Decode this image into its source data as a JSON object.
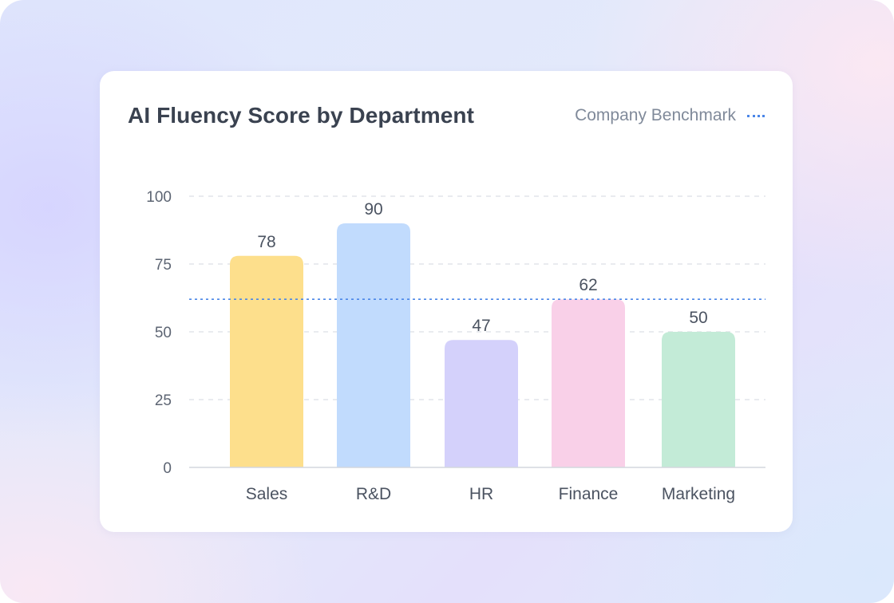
{
  "chart_data": {
    "type": "bar",
    "title": "AI Fluency Score by Department",
    "categories": [
      "Sales",
      "R&D",
      "HR",
      "Finance",
      "Marketing"
    ],
    "values": [
      78,
      90,
      47,
      62,
      50
    ],
    "data_labels": [
      "78",
      "90",
      "47",
      "62",
      "50"
    ],
    "bar_colors": [
      "#fddf8c",
      "#c1dbfd",
      "#d4d1fb",
      "#f9d0e8",
      "#c3ebd7"
    ],
    "ylim": [
      0,
      100
    ],
    "yticks": [
      0,
      25,
      50,
      75,
      100
    ],
    "ytick_labels": [
      "0",
      "25",
      "50",
      "75",
      "100"
    ],
    "grid": true,
    "benchmark": {
      "label": "Company Benchmark",
      "value": 62,
      "color": "#4a86e8",
      "style": "dotted"
    },
    "legend_position": "top-right",
    "xlabel": "",
    "ylabel": ""
  }
}
